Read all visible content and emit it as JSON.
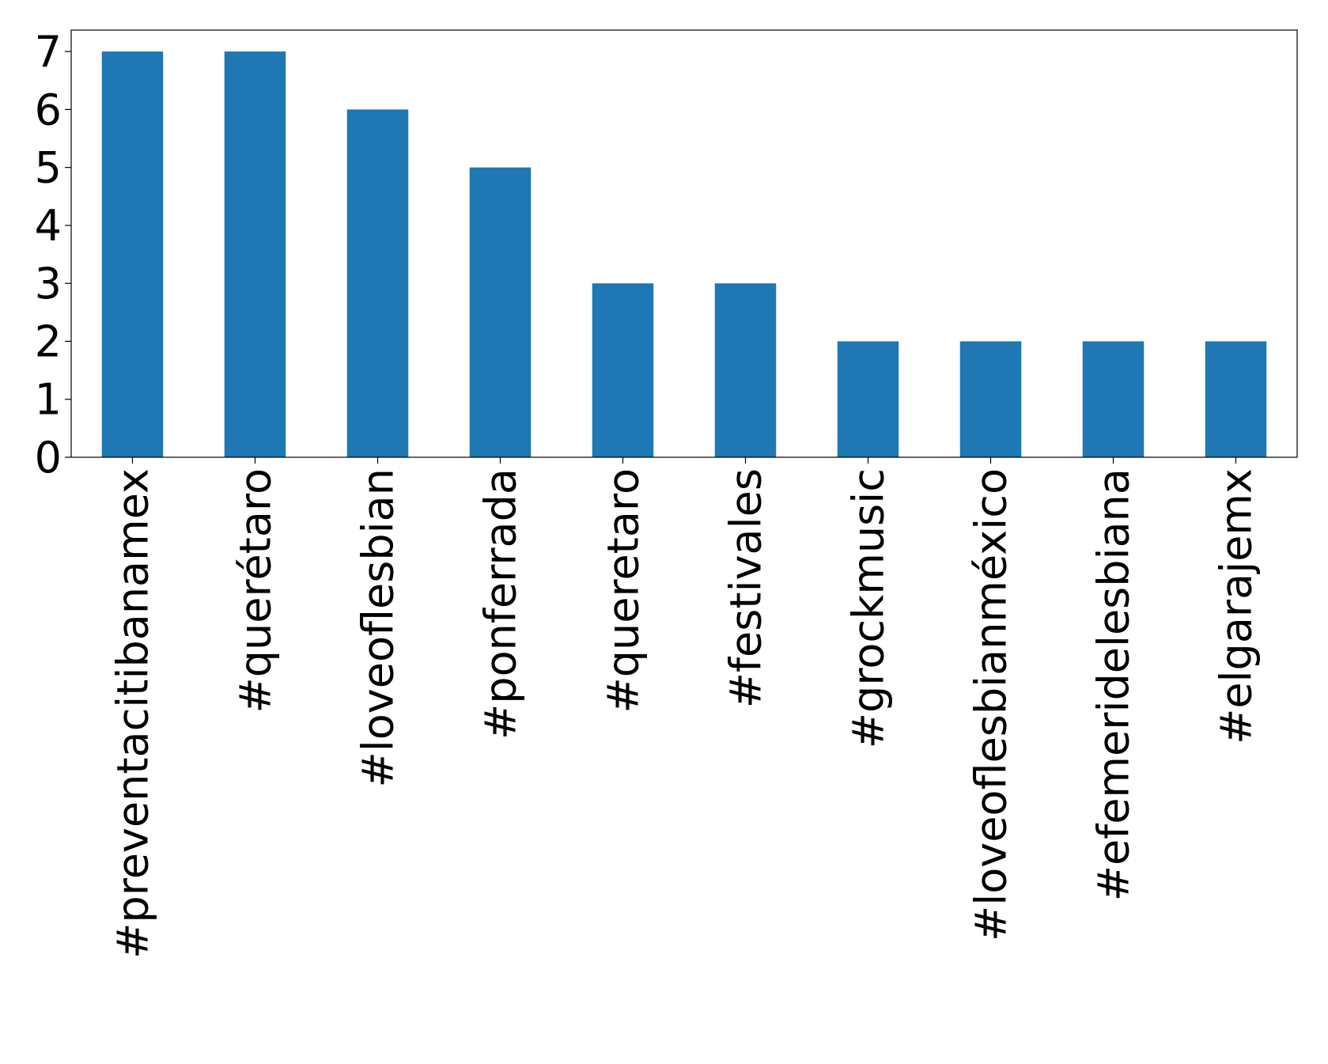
{
  "chart_data": {
    "type": "bar",
    "categories": [
      "#preventacitibanamex",
      "#querétaro",
      "#loveoflesbian",
      "#ponferrada",
      "#queretaro",
      "#festivales",
      "#grockmusic",
      "#loveoflesbianméxico",
      "#efemeridelesbiana",
      "#elgarajemx"
    ],
    "values": [
      7,
      7,
      6,
      5,
      3,
      3,
      2,
      2,
      2,
      2
    ],
    "color": "#1f77b4",
    "ylim": [
      0,
      7.37
    ],
    "yticks": [
      0,
      1,
      2,
      3,
      4,
      5,
      6,
      7
    ],
    "grid": false
  }
}
